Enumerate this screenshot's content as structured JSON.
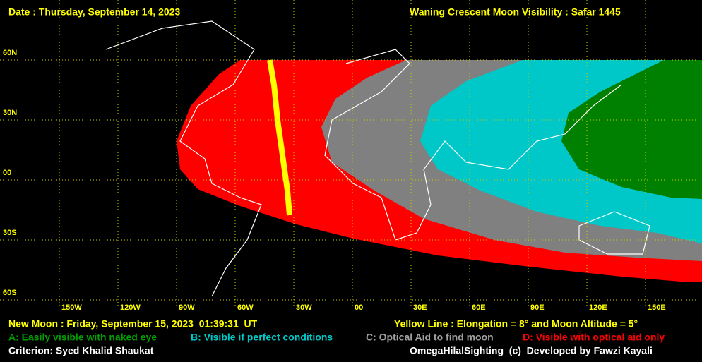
{
  "header": {
    "date": "Date : Thursday, September 14, 2023",
    "title": "Waning Crescent Moon Visibility : Safar 1445"
  },
  "map": {
    "lat_labels": [
      "60N",
      "30N",
      "00",
      "30S",
      "60S"
    ],
    "lon_labels": [
      "150W",
      "120W",
      "90W",
      "60W",
      "30W",
      "00",
      "30E",
      "60E",
      "90E",
      "120E",
      "150E"
    ]
  },
  "footer": {
    "new_moon": "New Moon : Friday, September 15, 2023  01:39:31  UT",
    "yellow_line": "Yellow Line : Elongation = 8° and Moon Altitude = 5°",
    "legend": [
      "A: Easily visible with naked eye",
      "B: Visible if perfect conditions",
      "C: Optical Aid to find moon",
      "D: Visible with optical aid only"
    ],
    "criterion": "Criterion: Syed Khalid Shaukat",
    "credit": "OmegaHilalSighting  (c)  Developed by Fawzi Kayali"
  }
}
